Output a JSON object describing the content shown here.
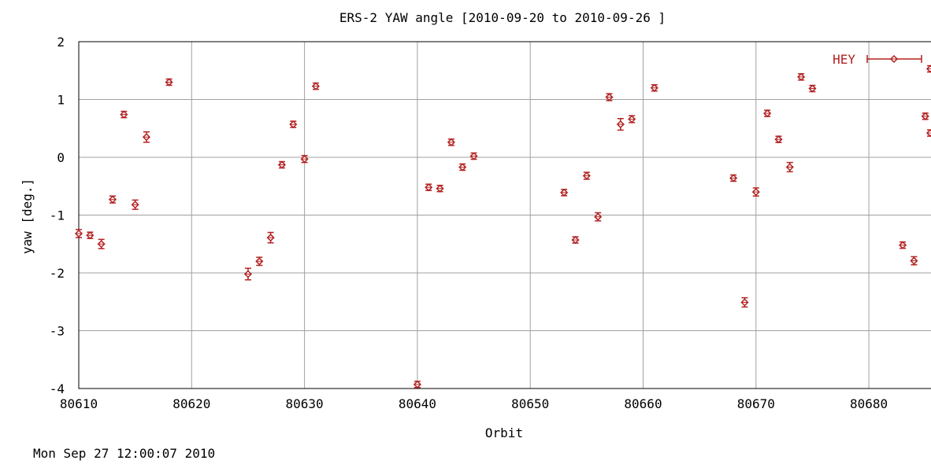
{
  "colors": {
    "series": "#b22222",
    "grid": "#a0a0a0",
    "frame": "#000000",
    "background": "#ffffff"
  },
  "timestamp": "Mon Sep 27 12:00:07 2010",
  "chart_data": {
    "type": "scatter",
    "title": "ERS-2 YAW angle [2010-09-20 to 2010-09-26 ]",
    "xlabel": "Orbit",
    "ylabel": "yaw [deg.]",
    "xlim": [
      80610,
      80686
    ],
    "ylim": [
      -4,
      2
    ],
    "grid": true,
    "legend_position": "top-right",
    "x_ticks": [
      80610,
      80620,
      80630,
      80640,
      80650,
      80660,
      80670,
      80680
    ],
    "y_ticks": [
      -4,
      -3,
      -2,
      -1,
      0,
      1,
      2
    ],
    "series": [
      {
        "name": "HEY",
        "marker": "diamond-with-errorbar",
        "points": [
          {
            "x": 80610,
            "y": -1.32,
            "err": 0.07
          },
          {
            "x": 80611,
            "y": -1.35,
            "err": 0.05
          },
          {
            "x": 80612,
            "y": -1.5,
            "err": 0.08
          },
          {
            "x": 80613,
            "y": -0.73,
            "err": 0.06
          },
          {
            "x": 80614,
            "y": 0.74,
            "err": 0.04
          },
          {
            "x": 80615,
            "y": -0.82,
            "err": 0.08
          },
          {
            "x": 80616,
            "y": 0.35,
            "err": 0.09
          },
          {
            "x": 80618,
            "y": 1.3,
            "err": 0.05
          },
          {
            "x": 80625,
            "y": -2.02,
            "err": 0.1
          },
          {
            "x": 80626,
            "y": -1.8,
            "err": 0.07
          },
          {
            "x": 80627,
            "y": -1.39,
            "err": 0.09
          },
          {
            "x": 80628,
            "y": -0.13,
            "err": 0.05
          },
          {
            "x": 80629,
            "y": 0.57,
            "err": 0.04
          },
          {
            "x": 80630,
            "y": -0.03,
            "err": 0.06
          },
          {
            "x": 80631,
            "y": 1.23,
            "err": 0.04
          },
          {
            "x": 80640,
            "y": -3.93,
            "err": 0.05
          },
          {
            "x": 80641,
            "y": -0.52,
            "err": 0.04
          },
          {
            "x": 80642,
            "y": -0.54,
            "err": 0.04
          },
          {
            "x": 80643,
            "y": 0.26,
            "err": 0.04
          },
          {
            "x": 80644,
            "y": -0.17,
            "err": 0.05
          },
          {
            "x": 80645,
            "y": 0.02,
            "err": 0.05
          },
          {
            "x": 80653,
            "y": -0.61,
            "err": 0.04
          },
          {
            "x": 80654,
            "y": -1.43,
            "err": 0.04
          },
          {
            "x": 80655,
            "y": -0.32,
            "err": 0.06
          },
          {
            "x": 80656,
            "y": -1.03,
            "err": 0.07
          },
          {
            "x": 80657,
            "y": 1.04,
            "err": 0.06
          },
          {
            "x": 80658,
            "y": 0.57,
            "err": 0.1
          },
          {
            "x": 80659,
            "y": 0.66,
            "err": 0.06
          },
          {
            "x": 80661,
            "y": 1.2,
            "err": 0.04
          },
          {
            "x": 80668,
            "y": -0.36,
            "err": 0.05
          },
          {
            "x": 80669,
            "y": -2.51,
            "err": 0.08
          },
          {
            "x": 80670,
            "y": -0.6,
            "err": 0.07
          },
          {
            "x": 80671,
            "y": 0.76,
            "err": 0.05
          },
          {
            "x": 80672,
            "y": 0.31,
            "err": 0.04
          },
          {
            "x": 80673,
            "y": -0.17,
            "err": 0.08
          },
          {
            "x": 80674,
            "y": 1.39,
            "err": 0.04
          },
          {
            "x": 80675,
            "y": 1.19,
            "err": 0.04
          },
          {
            "x": 80683,
            "y": -1.52,
            "err": 0.04
          },
          {
            "x": 80684,
            "y": -1.79,
            "err": 0.07
          },
          {
            "x": 80685,
            "y": 0.71,
            "err": 0.05
          },
          {
            "x": 80686,
            "y": 0.42,
            "err": 0.04
          },
          {
            "x": 80686,
            "y": 1.53,
            "err": 0.04
          }
        ]
      }
    ]
  }
}
